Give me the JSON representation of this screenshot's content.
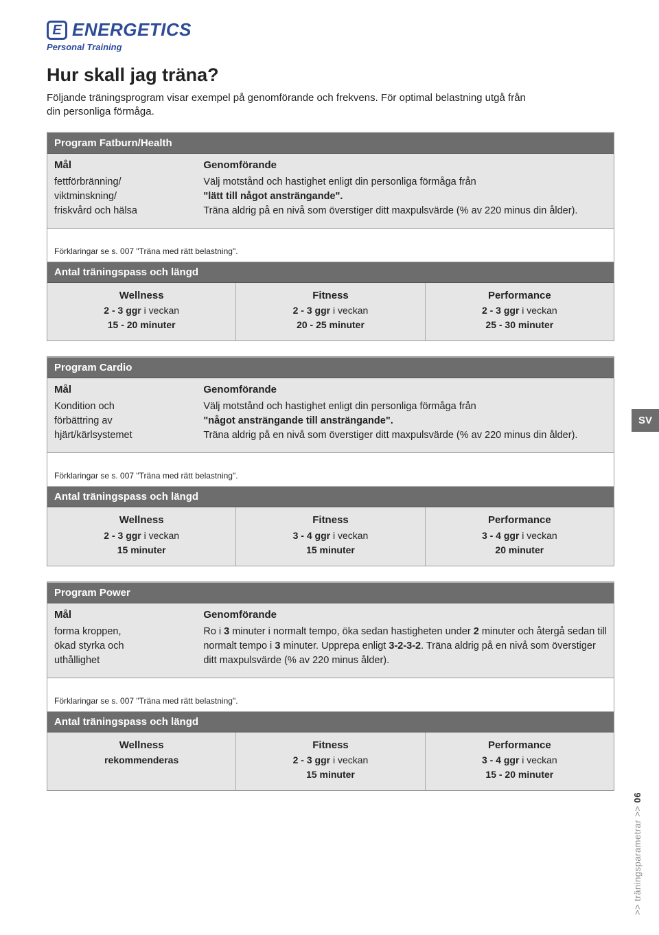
{
  "brand": {
    "logo_letter": "E",
    "logo_word": "ENERGETICS",
    "tagline": "Personal Training",
    "brand_color": "#2d4b97"
  },
  "page_title": "Hur skall jag träna?",
  "intro": "Följande träningsprogram visar exempel på genomförande och frekvens. För optimal belastning utgå från din personliga förmåga.",
  "lang_tab": "SV",
  "side_label": ">> träningsparametrar >>",
  "page_number": "06",
  "colors": {
    "bar_dark": "#6d6d6d",
    "bar_light": "#e6e6e6",
    "border": "#9a9a9a"
  },
  "labels": {
    "goal": "Mål",
    "execution": "Genomförande",
    "sessions_header": "Antal träningspass och längd",
    "footnote": "Förklaringar se s. 007 \"Träna med rätt belastning\"."
  },
  "programs": [
    {
      "title": "Program Fatburn/Health",
      "goal_lines": [
        "fettförbränning/",
        "viktminskning/",
        "friskvård och hälsa"
      ],
      "exec_pre": "Välj motstånd och hastighet enligt din personliga förmåga från",
      "exec_bold": "\"lätt till något ansträngande\".",
      "exec_post": "Träna aldrig på en nivå som överstiger ditt maxpulsvärde (% av 220 minus din ålder).",
      "levels": [
        {
          "name": "Wellness",
          "freq_bold": "2 - 3 ggr",
          "freq_tail": " i veckan",
          "dur": "15 - 20 minuter"
        },
        {
          "name": "Fitness",
          "freq_bold": "2 - 3 ggr",
          "freq_tail": " i veckan",
          "dur": "20 - 25 minuter"
        },
        {
          "name": "Performance",
          "freq_bold": "2 - 3 ggr",
          "freq_tail": " i veckan",
          "dur": "25 - 30 minuter"
        }
      ]
    },
    {
      "title": "Program Cardio",
      "goal_lines": [
        "Kondition och",
        "förbättring av",
        "hjärt/kärlsystemet"
      ],
      "exec_pre": "Välj motstånd och hastighet enligt din personliga förmåga från",
      "exec_bold": "\"något ansträngande till ansträngande\".",
      "exec_post": "Träna aldrig på en nivå som överstiger ditt maxpulsvärde (% av 220 minus din ålder).",
      "levels": [
        {
          "name": "Wellness",
          "freq_bold": "2 - 3 ggr",
          "freq_tail": " i veckan",
          "dur": "15 minuter"
        },
        {
          "name": "Fitness",
          "freq_bold": "3 - 4 ggr",
          "freq_tail": " i veckan",
          "dur": "15 minuter"
        },
        {
          "name": "Performance",
          "freq_bold": "3 - 4 ggr",
          "freq_tail": " i veckan",
          "dur": "20 minuter"
        }
      ]
    },
    {
      "title": "Program Power",
      "goal_lines": [
        "forma kroppen,",
        "ökad styrka och",
        "uthållighet"
      ],
      "exec_html_parts": [
        {
          "t": "Ro i "
        },
        {
          "b": "3"
        },
        {
          "t": " minuter i normalt tempo, öka sedan hastigheten under "
        },
        {
          "b": "2"
        },
        {
          "t": " minuter och återgå sedan till normalt tempo i "
        },
        {
          "b": "3"
        },
        {
          "t": " minuter. Upprepa enligt "
        },
        {
          "b": "3-2-3-2"
        },
        {
          "t": ". Träna aldrig på en nivå som överstiger ditt maxpulsvärde (% av 220 minus ålder)."
        }
      ],
      "levels": [
        {
          "name": "Wellness",
          "freq_bold": "rekommenderas",
          "freq_tail": "",
          "dur": ""
        },
        {
          "name": "Fitness",
          "freq_bold": "2 - 3 ggr",
          "freq_tail": " i veckan",
          "dur": "15 minuter"
        },
        {
          "name": "Performance",
          "freq_bold": "3 - 4 ggr",
          "freq_tail": " i veckan",
          "dur": "15 - 20 minuter"
        }
      ]
    }
  ]
}
